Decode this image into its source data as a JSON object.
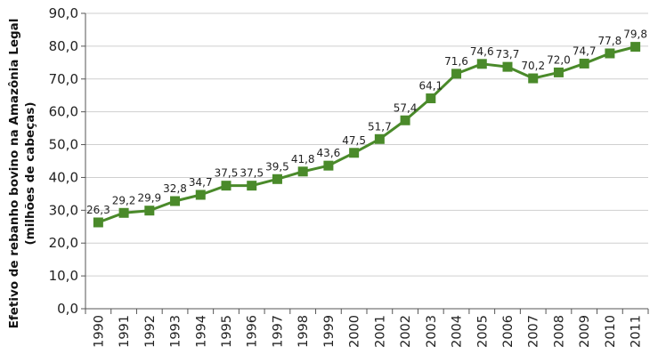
{
  "chart_data": {
    "type": "line",
    "title": "",
    "ylabel": "Efetivo de rebanho bovino na Amazônia Legal",
    "ylabel_line2": "(milhões de cabeças)",
    "xlabel": "",
    "ylim": [
      0,
      90
    ],
    "y_ticks": [
      "0,0",
      "10,0",
      "20,0",
      "30,0",
      "40,0",
      "50,0",
      "60,0",
      "70,0",
      "80,0",
      "90,0"
    ],
    "y_tick_values": [
      0,
      10,
      20,
      30,
      40,
      50,
      60,
      70,
      80,
      90
    ],
    "grid": "horizontal",
    "categories": [
      "1990",
      "1991",
      "1992",
      "1993",
      "1994",
      "1995",
      "1996",
      "1997",
      "1998",
      "1999",
      "2000",
      "2001",
      "2002",
      "2003",
      "2004",
      "2005",
      "2006",
      "2007",
      "2008",
      "2009",
      "2010",
      "2011"
    ],
    "series": [
      {
        "values": [
          26.3,
          29.2,
          29.9,
          32.8,
          34.7,
          37.5,
          37.5,
          39.5,
          41.8,
          43.6,
          47.5,
          51.7,
          57.4,
          64.1,
          71.6,
          74.6,
          73.7,
          70.2,
          72.0,
          74.7,
          77.8,
          79.8
        ],
        "labels": [
          "26,3",
          "29,2",
          "29,9",
          "32,8",
          "34,7",
          "37,5",
          "37,5",
          "39,5",
          "41,8",
          "43,6",
          "47,5",
          "51,7",
          "57,4",
          "64,1",
          "71,6",
          "74,6",
          "73,7",
          "70,2",
          "72,0",
          "74,7",
          "77,8",
          "79,8"
        ],
        "color": "#4a8a2a",
        "marker": "square"
      }
    ]
  }
}
